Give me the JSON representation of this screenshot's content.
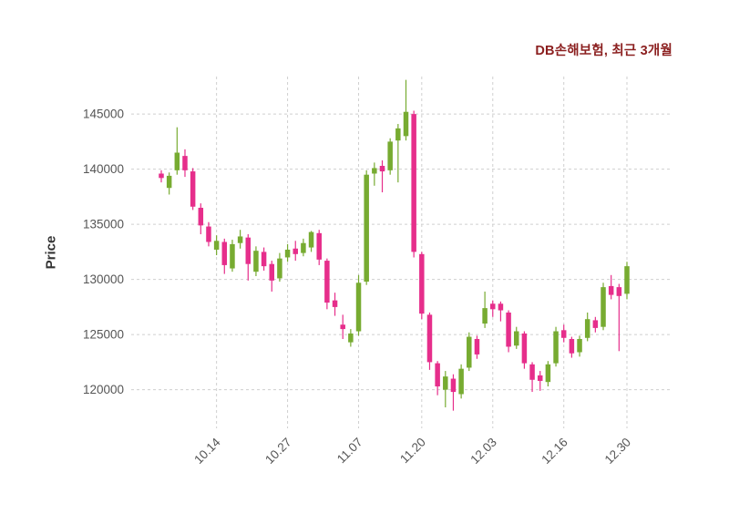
{
  "header": {
    "title": "DB손해보험, 최근 3개월"
  },
  "chart_data": {
    "type": "candlestick",
    "title": "DB손해보험, 최근 3개월",
    "ylabel": "Price",
    "ylim": [
      116500,
      148400
    ],
    "y_ticks": [
      120000,
      125000,
      130000,
      135000,
      140000,
      145000
    ],
    "x_tick_indices": [
      7,
      16,
      25,
      33,
      42,
      51,
      59
    ],
    "x_tick_labels": [
      "10.14",
      "10.27",
      "11.07",
      "11.20",
      "12.03",
      "12.16",
      "12.30"
    ],
    "grid": true,
    "grid_style": "dashed",
    "legend": "none",
    "colors": {
      "up": "#77ab31",
      "down": "#e62e8b",
      "grid": "#cfcfcf",
      "title": "#8b1f1f",
      "tick": "#555555",
      "axis_label": "#333333"
    },
    "candle_fields": [
      "date",
      "open",
      "high",
      "low",
      "close"
    ],
    "candles": [
      [
        "10.02",
        139600,
        139900,
        138800,
        139200
      ],
      [
        "10.04",
        138300,
        139700,
        137700,
        139400
      ],
      [
        "10.07",
        139900,
        143800,
        139500,
        141500
      ],
      [
        "10.08",
        141200,
        141800,
        139300,
        139900
      ],
      [
        "10.10",
        139800,
        140100,
        136300,
        136600
      ],
      [
        "10.11",
        136500,
        136900,
        134100,
        134900
      ],
      [
        "10.13",
        134800,
        135200,
        133000,
        133400
      ],
      [
        "10.14",
        132700,
        134000,
        132200,
        133500
      ],
      [
        "10.15",
        133400,
        133700,
        130500,
        131300
      ],
      [
        "10.17",
        131000,
        133600,
        130700,
        133200
      ],
      [
        "10.18",
        133300,
        134500,
        132800,
        133900
      ],
      [
        "10.20",
        133800,
        134100,
        129900,
        131400
      ],
      [
        "10.21",
        130700,
        133000,
        130300,
        132600
      ],
      [
        "10.22",
        132500,
        132900,
        130800,
        131200
      ],
      [
        "10.24",
        131400,
        131700,
        128900,
        129900
      ],
      [
        "10.25",
        130100,
        132400,
        129800,
        131900
      ],
      [
        "10.27",
        132000,
        133200,
        131600,
        132700
      ],
      [
        "10.28",
        132800,
        133500,
        131700,
        132300
      ],
      [
        "10.29",
        132400,
        133700,
        132100,
        133300
      ],
      [
        "10.31",
        132900,
        134400,
        132500,
        134300
      ],
      [
        "11.01",
        134200,
        134500,
        131300,
        131800
      ],
      [
        "11.03",
        131700,
        131900,
        127300,
        127900
      ],
      [
        "11.04",
        128100,
        128800,
        126700,
        127500
      ],
      [
        "11.05",
        125900,
        126800,
        124600,
        125500
      ],
      [
        "11.06",
        124300,
        125500,
        123900,
        125100
      ],
      [
        "11.07",
        125300,
        130400,
        124900,
        129700
      ],
      [
        "11.10",
        129800,
        139900,
        129500,
        139500
      ],
      [
        "11.11",
        139600,
        140600,
        138500,
        140100
      ],
      [
        "11.12",
        140300,
        140800,
        137900,
        139800
      ],
      [
        "11.13",
        139900,
        142800,
        139500,
        142500
      ],
      [
        "11.14",
        142600,
        144100,
        138800,
        143700
      ],
      [
        "11.17",
        143000,
        148100,
        142600,
        145200
      ],
      [
        "11.18",
        145000,
        145300,
        132000,
        132500
      ],
      [
        "11.20",
        132300,
        132500,
        126400,
        126900
      ],
      [
        "11.21",
        126800,
        127000,
        121800,
        122500
      ],
      [
        "11.24",
        122400,
        122600,
        119500,
        120300
      ],
      [
        "11.25",
        120000,
        121700,
        118400,
        121200
      ],
      [
        "11.26",
        121000,
        121400,
        118100,
        119800
      ],
      [
        "11.27",
        119600,
        122300,
        119200,
        121900
      ],
      [
        "11.28",
        122000,
        125200,
        121700,
        124800
      ],
      [
        "12.01",
        124600,
        124900,
        122800,
        123200
      ],
      [
        "12.02",
        126000,
        128900,
        125600,
        127400
      ],
      [
        "12.03",
        127800,
        128100,
        126600,
        127300
      ],
      [
        "12.04",
        127800,
        128000,
        126200,
        127200
      ],
      [
        "12.05",
        127000,
        127200,
        123400,
        123900
      ],
      [
        "12.08",
        124000,
        125700,
        123700,
        125300
      ],
      [
        "12.09",
        125100,
        125300,
        121900,
        122400
      ],
      [
        "12.10",
        122300,
        122500,
        119800,
        120900
      ],
      [
        "12.11",
        121300,
        121700,
        119900,
        120800
      ],
      [
        "12.12",
        120700,
        122600,
        120300,
        122300
      ],
      [
        "12.15",
        122400,
        125700,
        122100,
        125300
      ],
      [
        "12.16",
        125400,
        125900,
        124300,
        124700
      ],
      [
        "12.17",
        124600,
        124800,
        122900,
        123300
      ],
      [
        "12.18",
        123400,
        124900,
        123000,
        124600
      ],
      [
        "12.19",
        124700,
        127000,
        124400,
        126400
      ],
      [
        "12.22",
        126300,
        126600,
        125200,
        125600
      ],
      [
        "12.23",
        125700,
        129700,
        125400,
        129300
      ],
      [
        "12.24",
        129400,
        130400,
        128200,
        128600
      ],
      [
        "12.26",
        129300,
        129600,
        123500,
        128500
      ],
      [
        "12.30",
        128700,
        131600,
        128200,
        131200
      ]
    ]
  }
}
